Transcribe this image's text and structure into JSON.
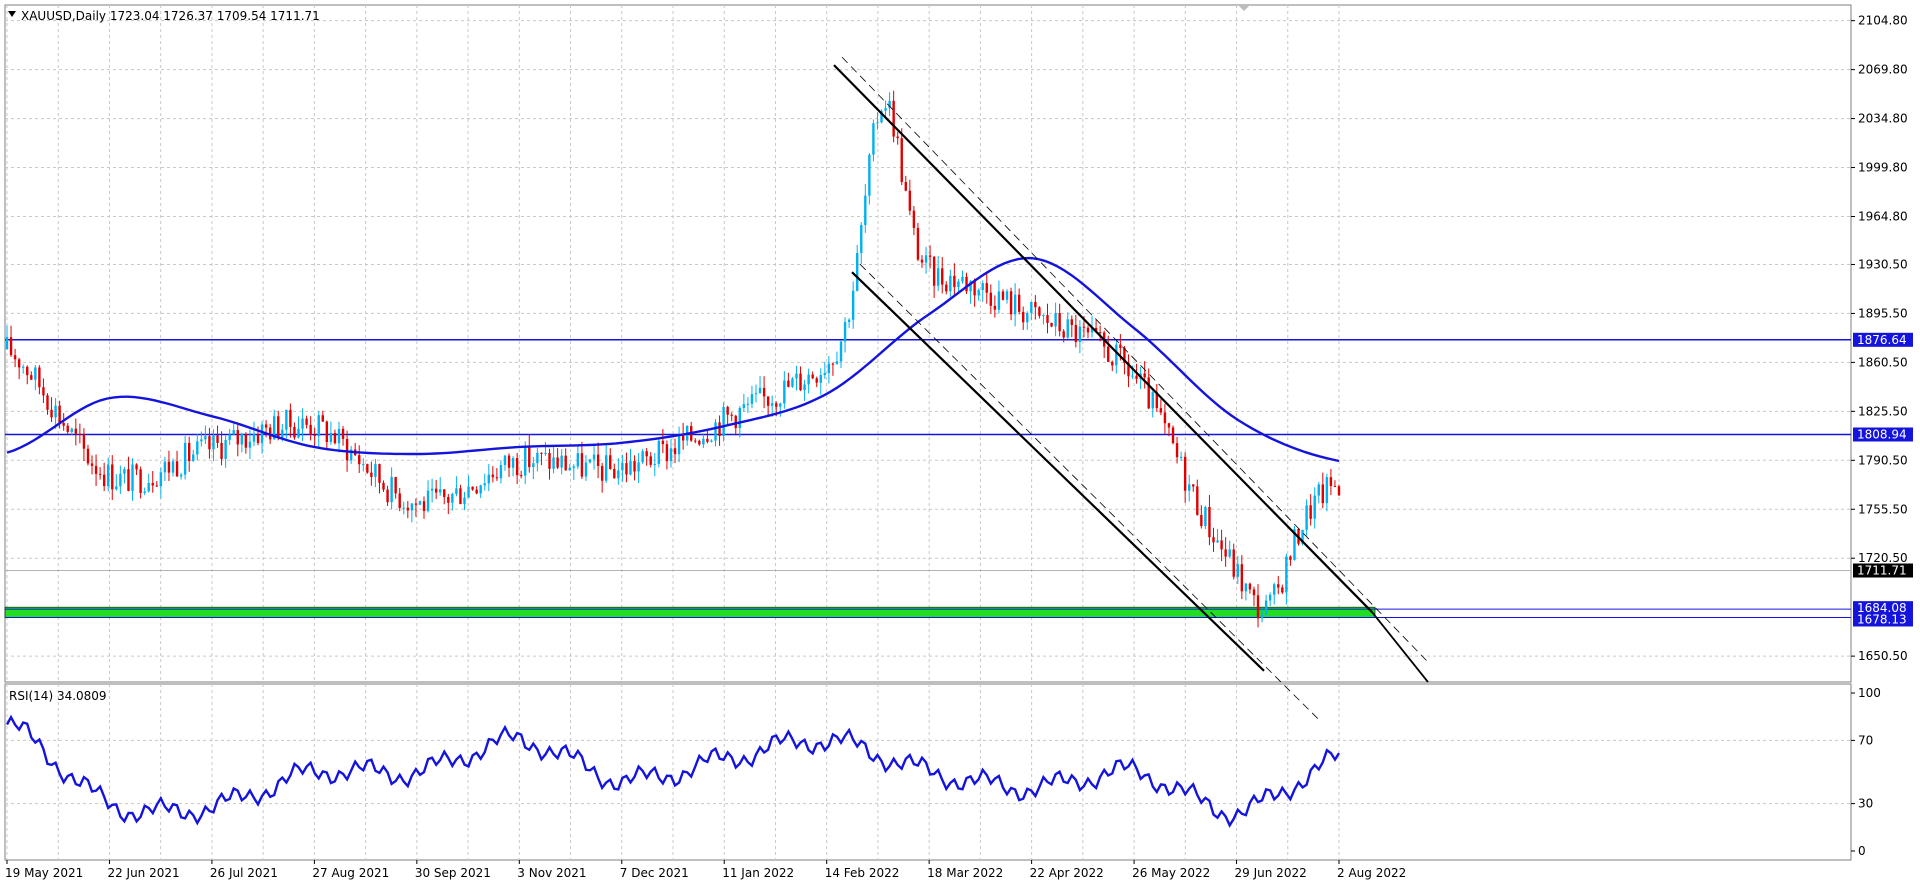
{
  "header": {
    "symbol_line": "XAUUSD,Daily  1723.04 1726.37 1709.54 1711.71",
    "rsi_label": "RSI(14) 34.0809"
  },
  "colors": {
    "bull": "#00b0f0",
    "bear": "#e00000",
    "ma": "#1414dc",
    "hline": "#1414dc",
    "zone": "#22dd22",
    "rsi": "#1414dc",
    "channel": "#000000",
    "grid": "#c8c8c8"
  },
  "chart_data": {
    "type": "candlestick",
    "symbol": "XAUUSD",
    "timeframe": "Daily",
    "last_ohlc": {
      "open": 1723.04,
      "high": 1726.37,
      "low": 1709.54,
      "close": 1711.71
    },
    "x_axis": {
      "labels": [
        "19 May 2021",
        "22 Jun 2021",
        "26 Jul 2021",
        "27 Aug 2021",
        "30 Sep 2021",
        "3 Nov 2021",
        "7 Dec 2021",
        "11 Jan 2022",
        "14 Feb 2022",
        "18 Mar 2022",
        "22 Apr 2022",
        "26 May 2022",
        "29 Jun 2022",
        "2 Aug 2022"
      ]
    },
    "price_axis": {
      "ylim": [
        1632,
        2116
      ],
      "ticks": [
        "2104.80",
        "2069.80",
        "2034.80",
        "1999.80",
        "1964.80",
        "1930.50",
        "1895.50",
        "1860.50",
        "1825.50",
        "1790.50",
        "1755.50",
        "1720.50",
        "1650.50"
      ]
    },
    "price_series": {
      "name": "XAUUSD",
      "dates": [
        "19 May 2021",
        "22 Jun 2021",
        "26 Jul 2021",
        "27 Aug 2021",
        "30 Sep 2021",
        "3 Nov 2021",
        "7 Dec 2021",
        "11 Jan 2022",
        "14 Feb 2022",
        "18 Mar 2022",
        "22 Apr 2022",
        "26 May 2022",
        "29 Jun 2022",
        "2 Aug 2022"
      ],
      "approx_close": [
        1870,
        1780,
        1800,
        1815,
        1760,
        1790,
        1785,
        1820,
        1860,
        1920,
        1895,
        1850,
        1720,
        1775
      ],
      "extremes": {
        "high": 2070,
        "high_date": "early Mar 2022",
        "low": 1680,
        "low_date": "mid Jul 2022",
        "aug2021_low": 1684
      }
    },
    "moving_average": {
      "dates": [
        "19 May 2021",
        "22 Jun 2021",
        "26 Jul 2021",
        "27 Aug 2021",
        "30 Sep 2021",
        "3 Nov 2021",
        "7 Dec 2021",
        "11 Jan 2022",
        "14 Feb 2022",
        "18 Mar 2022",
        "22 Apr 2022",
        "26 May 2022",
        "29 Jun 2022",
        "2 Aug 2022"
      ],
      "values": [
        1796,
        1835,
        1822,
        1800,
        1795,
        1800,
        1803,
        1815,
        1838,
        1895,
        1935,
        1885,
        1820,
        1790
      ]
    },
    "horizontal_lines": [
      {
        "label": "1876.64",
        "value": 1876.64
      },
      {
        "label": "1808.94",
        "value": 1808.94
      }
    ],
    "support_zone": {
      "labels": [
        "1684.08",
        "1678.13"
      ],
      "values": [
        1684.08,
        1678.13
      ]
    },
    "current_price": {
      "label": "1711.71",
      "value": 1711.71
    },
    "channel_lines": [
      {
        "from": {
          "date": "early Mar 2022",
          "price": 2073
        },
        "to": {
          "date": "late Aug 2022",
          "price": 1682
        }
      },
      {
        "from": {
          "date": "18 Mar 2022",
          "price": 1925
        },
        "to": {
          "date": "mid Jul 2022",
          "price": 1640
        }
      }
    ],
    "rsi": {
      "period": 14,
      "value": 34.0809,
      "ylim": [
        0,
        100
      ],
      "levels": [
        30,
        70
      ],
      "ticks": [
        "100",
        "70",
        "30",
        "0"
      ],
      "dates": [
        "19 May 2021",
        "22 Jun 2021",
        "26 Jul 2021",
        "27 Aug 2021",
        "30 Sep 2021",
        "3 Nov 2021",
        "7 Dec 2021",
        "11 Jan 2022",
        "14 Feb 2022",
        "18 Mar 2022",
        "22 Apr 2022",
        "26 May 2022",
        "29 Jun 2022",
        "2 Aug 2022"
      ],
      "values": [
        80,
        30,
        28,
        50,
        50,
        70,
        45,
        58,
        70,
        50,
        40,
        50,
        25,
        58
      ]
    }
  }
}
